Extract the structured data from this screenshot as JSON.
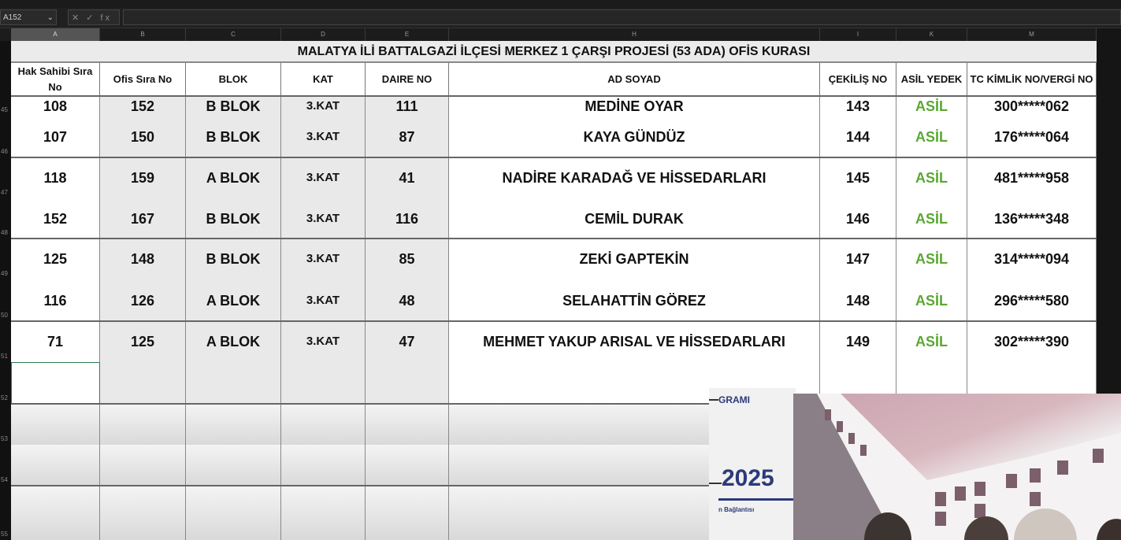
{
  "formula_bar": {
    "name_box": "A152",
    "icons": "✕ ✓ fx"
  },
  "columns": [
    "A",
    "B",
    "C",
    "D",
    "E",
    "H",
    "I",
    "K",
    "M"
  ],
  "row_numbers": [
    "45",
    "46",
    "47",
    "48",
    "49",
    "50",
    "51",
    "52",
    "53",
    "54",
    "55"
  ],
  "title": "MALATYA İLİ BATTALGAZİ İLÇESİ MERKEZ 1 ÇARŞI PROJESİ (53 ADA) OFİS KURASI",
  "headers": [
    "Hak Sahibi Sıra No",
    "Ofis Sıra No",
    "BLOK",
    "KAT",
    "DAIRE NO",
    "AD SOYAD",
    "ÇEKİLİŞ NO",
    "ASİL YEDEK",
    "TC KİMLİK NO/VERGİ NO"
  ],
  "rows": [
    [
      "108",
      "152",
      "B BLOK",
      "3.KAT",
      "111",
      "MEDİNE OYAR",
      "143",
      "ASİL",
      "300*****062"
    ],
    [
      "107",
      "150",
      "B BLOK",
      "3.KAT",
      "87",
      "KAYA GÜNDÜZ",
      "144",
      "ASİL",
      "176*****064"
    ],
    [
      "118",
      "159",
      "A BLOK",
      "3.KAT",
      "41",
      "NADİRE KARADAĞ VE HİSSEDARLARI",
      "145",
      "ASİL",
      "481*****958"
    ],
    [
      "152",
      "167",
      "B BLOK",
      "3.KAT",
      "116",
      "CEMİL DURAK",
      "146",
      "ASİL",
      "136*****348"
    ],
    [
      "125",
      "148",
      "B BLOK",
      "3.KAT",
      "85",
      "ZEKİ GAPTEKİN",
      "147",
      "ASİL",
      "314*****094"
    ],
    [
      "116",
      "126",
      "A BLOK",
      "3.KAT",
      "48",
      "SELAHATTİN GÖREZ",
      "148",
      "ASİL",
      "296*****580"
    ],
    [
      "71",
      "125",
      "A BLOK",
      "3.KAT",
      "47",
      "MEHMET YAKUP ARISAL VE HİSSEDARLARI",
      "149",
      "ASİL",
      "302*****390"
    ]
  ],
  "overlay": {
    "slide_text": "GRAMI",
    "year": "2025",
    "subtext": "n Bağlantısı"
  },
  "colors": {
    "asil": "#5aa832",
    "year": "#2c3a7a"
  }
}
